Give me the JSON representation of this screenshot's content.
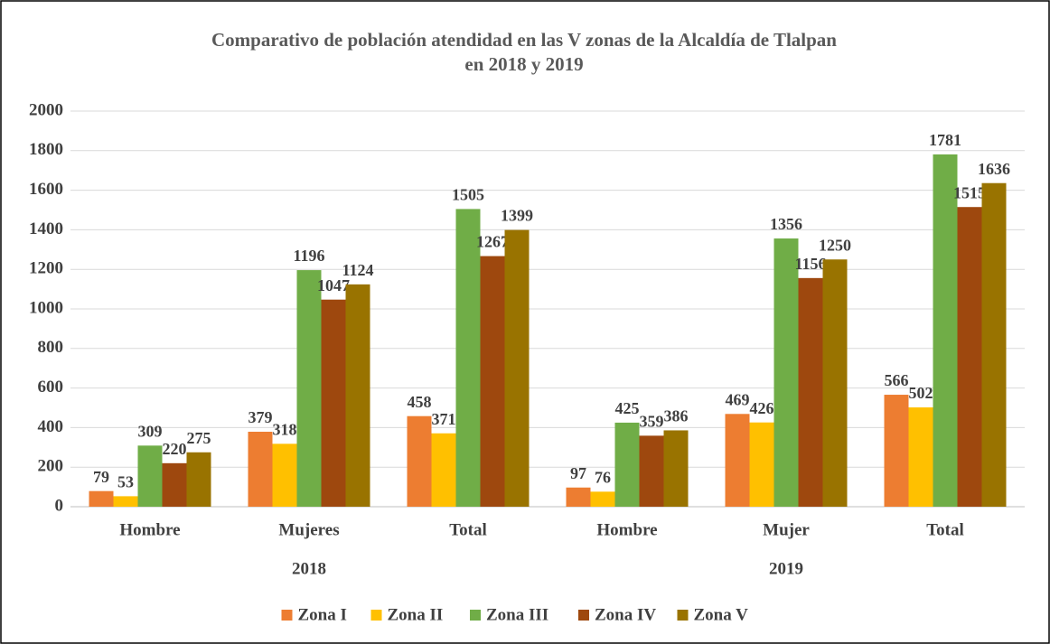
{
  "chart_data": {
    "type": "bar",
    "title": [
      "Comparativo de población atendidad en las V zonas de la Alcaldía de Tlalpan",
      "en 2018 y 2019"
    ],
    "category_groups": [
      {
        "label": "2018",
        "categories": [
          "Hombre",
          "Mujeres",
          "Total"
        ]
      },
      {
        "label": "2019",
        "categories": [
          "Hombre",
          "Mujer",
          "Total"
        ]
      }
    ],
    "series": [
      {
        "name": "Zona I",
        "color": "#ED7D31",
        "values": [
          79,
          379,
          458,
          97,
          469,
          566
        ]
      },
      {
        "name": "Zona II",
        "color": "#FFC000",
        "values": [
          53,
          318,
          371,
          76,
          426,
          502
        ]
      },
      {
        "name": "Zona III",
        "color": "#70AD47",
        "values": [
          309,
          1196,
          1505,
          425,
          1356,
          1781
        ]
      },
      {
        "name": "Zona IV",
        "color": "#9E480E",
        "values": [
          220,
          1047,
          1267,
          359,
          1156,
          1515
        ]
      },
      {
        "name": "Zona V",
        "color": "#997300",
        "values": [
          275,
          1124,
          1399,
          386,
          1250,
          1636
        ]
      }
    ],
    "ylim": [
      0,
      2000
    ],
    "yticks": [
      0,
      200,
      400,
      600,
      800,
      1000,
      1200,
      1400,
      1600,
      1800,
      2000
    ],
    "grid": true,
    "legend": "bottom"
  }
}
